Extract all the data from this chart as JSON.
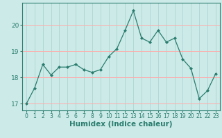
{
  "x": [
    0,
    1,
    2,
    3,
    4,
    5,
    6,
    7,
    8,
    9,
    10,
    11,
    12,
    13,
    14,
    15,
    16,
    17,
    18,
    19,
    20,
    21,
    22,
    23
  ],
  "y": [
    17.0,
    17.6,
    18.5,
    18.1,
    18.4,
    18.4,
    18.5,
    18.3,
    18.2,
    18.3,
    18.8,
    19.1,
    19.8,
    20.55,
    19.5,
    19.35,
    19.8,
    19.35,
    19.5,
    18.7,
    18.35,
    17.2,
    17.5,
    18.15
  ],
  "line_color": "#2a7d6e",
  "marker": "D",
  "marker_size": 2.0,
  "bg_color": "#cceae8",
  "grid_x_color": "#b0d8d4",
  "grid_y_color": "#ffaaaa",
  "xlabel": "Humidex (Indice chaleur)",
  "xlabel_fontsize": 7.5,
  "tick_color": "#2a7d6e",
  "ytick_fontsize": 6.5,
  "xtick_fontsize": 5.5,
  "ylim": [
    16.75,
    20.85
  ],
  "yticks": [
    17,
    18,
    19,
    20
  ],
  "xlim": [
    -0.5,
    23.5
  ],
  "linewidth": 0.9
}
